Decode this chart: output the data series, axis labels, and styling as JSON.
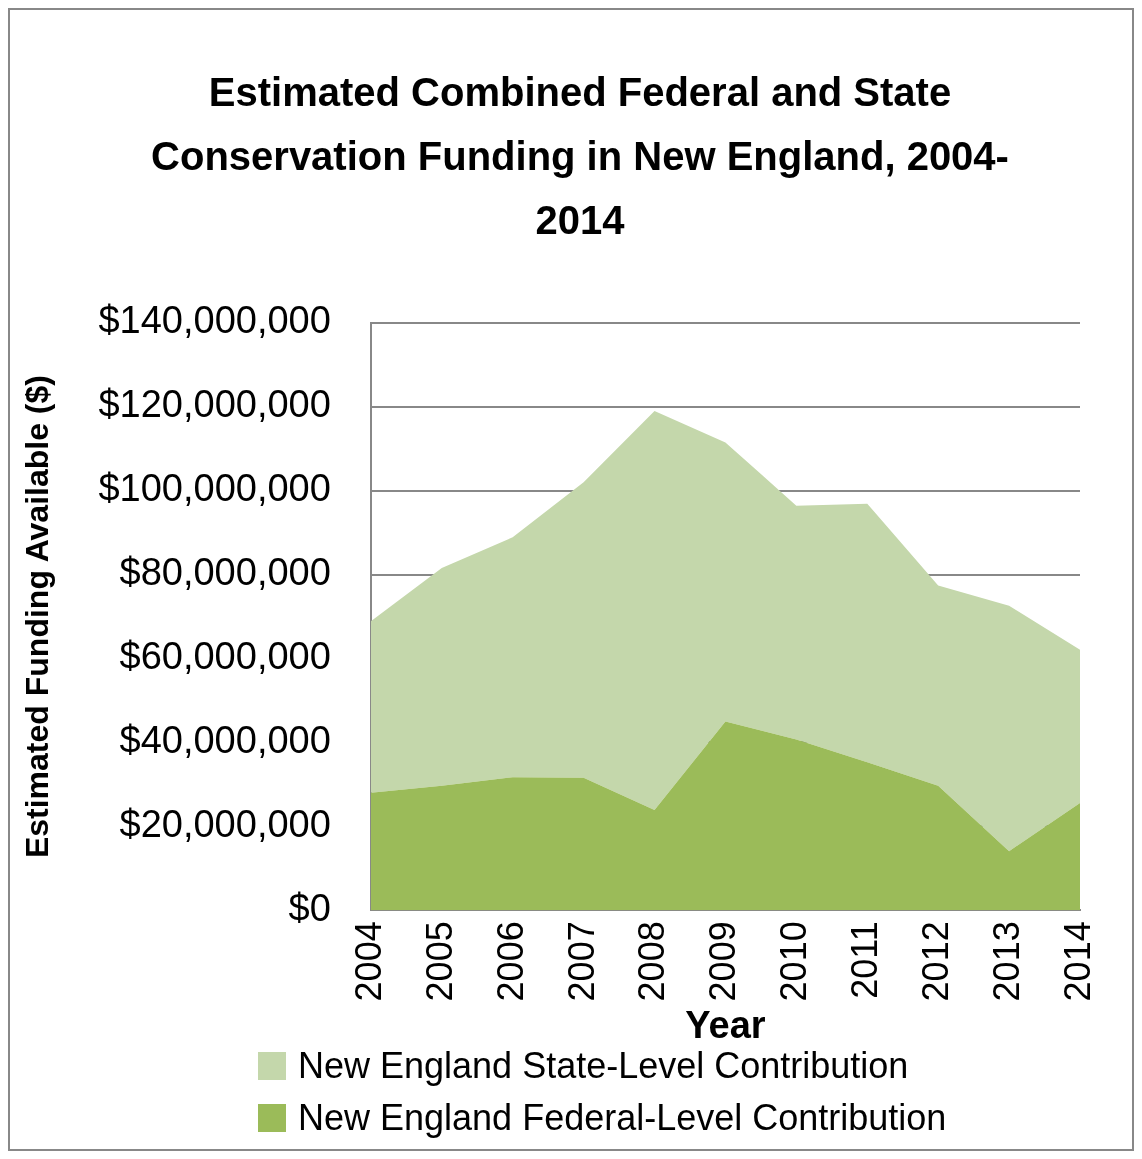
{
  "chart_data": {
    "type": "area",
    "title": "Estimated Combined Federal and State Conservation Funding in New England, 2004-2014",
    "xlabel": "Year",
    "ylabel": "Estimated Funding Available ($)",
    "categories": [
      "2004",
      "2005",
      "2006",
      "2007",
      "2008",
      "2009",
      "2010",
      "2011",
      "2012",
      "2013",
      "2014"
    ],
    "stacked": true,
    "series": [
      {
        "name": "New England Federal-Level Contribution",
        "color": "#9bbb59",
        "values": [
          28000000,
          29700000,
          31700000,
          31600000,
          23900000,
          45000000,
          40700000,
          35300000,
          29700000,
          14100000,
          25600000
        ]
      },
      {
        "name": "New England State-Level Contribution",
        "color": "#c4d7ab",
        "values": [
          40900000,
          51900000,
          57200000,
          70400000,
          95100000,
          66500000,
          55700000,
          61600000,
          47700000,
          58500000,
          36500000
        ]
      }
    ],
    "ylim": [
      0,
      140000000
    ],
    "yticks": [
      {
        "value": 0,
        "label": "$0"
      },
      {
        "value": 20000000,
        "label": "$20,000,000"
      },
      {
        "value": 40000000,
        "label": "$40,000,000"
      },
      {
        "value": 60000000,
        "label": "$60,000,000"
      },
      {
        "value": 80000000,
        "label": "$80,000,000"
      },
      {
        "value": 100000000,
        "label": "$100,000,000"
      },
      {
        "value": 120000000,
        "label": "$120,000,000"
      },
      {
        "value": 140000000,
        "label": "$140,000,000"
      }
    ],
    "grid": "y",
    "legend": "bottom"
  }
}
